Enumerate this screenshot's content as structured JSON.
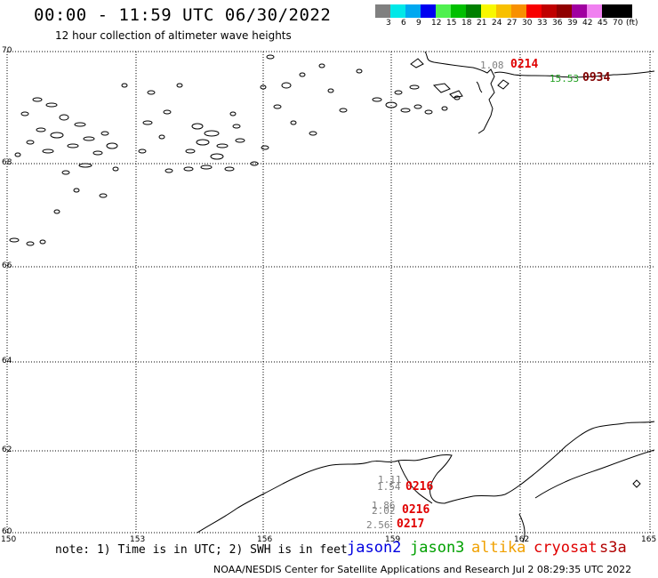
{
  "title": "00:00 - 11:59 UTC 06/30/2022",
  "subtitle": "12 hour collection of altimeter wave heights",
  "scale": {
    "unit": "(ft)",
    "labels": [
      "3",
      "6",
      "9",
      "12",
      "15",
      "18",
      "21",
      "24",
      "27",
      "30",
      "33",
      "36",
      "39",
      "42",
      "45",
      "70"
    ],
    "colors": [
      "#808080",
      "#00e8e8",
      "#00a8f0",
      "#0000f0",
      "#50f050",
      "#00c000",
      "#008000",
      "#f8f800",
      "#f8c000",
      "#f89000",
      "#f80000",
      "#c00000",
      "#900000",
      "#a000a0",
      "#f080f0",
      "#000000",
      "#000000"
    ]
  },
  "axes": {
    "lat_labels": [
      "70",
      "68",
      "66",
      "64",
      "62",
      "60"
    ],
    "lon_labels": [
      "150",
      "153",
      "156",
      "159",
      "162",
      "165"
    ]
  },
  "observations": [
    {
      "value": "1.08",
      "value_color": "#808080",
      "time": "0214",
      "time_color": "#e00000"
    },
    {
      "value": "15.53",
      "value_color": "#20a020",
      "time": "0934",
      "time_color": "#800000"
    },
    {
      "value": "1.11",
      "value_color": "#808080",
      "time": "",
      "time_color": "#e00000"
    },
    {
      "value": "1.54",
      "value_color": "#808080",
      "time": "0216",
      "time_color": "#e00000"
    },
    {
      "value": "1.86",
      "value_color": "#808080",
      "time": "",
      "time_color": "#e00000"
    },
    {
      "value": "2.02",
      "value_color": "#808080",
      "time": "0216",
      "time_color": "#e00000"
    },
    {
      "value": "2.56",
      "value_color": "#808080",
      "time": "0217",
      "time_color": "#e00000"
    }
  ],
  "note": "note: 1) Time is in UTC; 2) SWH is in feet",
  "satellites": [
    {
      "name": "jason2",
      "color": "#0000e0"
    },
    {
      "name": "jason3",
      "color": "#00a000"
    },
    {
      "name": "altika",
      "color": "#f0a000"
    },
    {
      "name": "cryosat",
      "color": "#e00000"
    },
    {
      "name": "s3a",
      "color": "#b00000"
    }
  ],
  "credit": "NOAA/NESDIS Center for Satellite Applications and Research   Jul  2 08:29:35 UTC 2022"
}
